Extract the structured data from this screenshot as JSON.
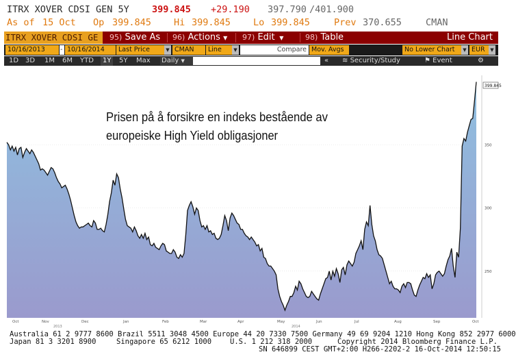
{
  "header": {
    "ticker": "ITRX XOVER CDSI GEN 5Y",
    "last": "399.845",
    "change": "+29.190",
    "bid": "397.790",
    "ask": "/401.900",
    "asof_label": "As of",
    "asof_date": "15 Oct",
    "op_label": "Op",
    "op_value": "399.845",
    "hi_label": "Hi",
    "hi_value": "399.845",
    "lo_label": "Lo",
    "lo_value": "399.845",
    "prev_label": "Prev",
    "prev_value": "370.655",
    "source": "CMAN"
  },
  "menubar": {
    "ticker_field": "ITRX XOVER CDSI GE",
    "save_num": "95)",
    "save_label": "Save As",
    "actions_num": "96)",
    "actions_label": "Actions",
    "edit_num": "97)",
    "edit_label": "Edit",
    "table_num": "98)",
    "table_label": "Table",
    "title": "Line Chart"
  },
  "controls": {
    "start_date": "10/16/2013",
    "end_date": "10/16/2014",
    "price_type": "Last Price",
    "source": "CMAN",
    "chart_type": "Line",
    "compare_label": "Compare",
    "mov_avgs_label": "Mov. Avgs",
    "lower_chart": "No Lower Chart",
    "currency": "EUR"
  },
  "timeframes": [
    "1D",
    "3D",
    "1M",
    "6M",
    "YTD",
    "1Y",
    "5Y",
    "Max"
  ],
  "selected_timeframe": "1Y",
  "period": "Daily",
  "toolbar_right": {
    "collapse": "«",
    "security_study": "Security/Study",
    "event": "Event"
  },
  "annotation": {
    "line1": "Prisen på å forsikre en indeks bestående av",
    "line2": "europeiske High Yield obligasjoner"
  },
  "colors": {
    "menubar_bg": "#8b0000",
    "field_orange": "#f0a818",
    "line": "#111111",
    "area_top": "#8fc0e0",
    "area_bottom": "#9a9acd"
  },
  "chart_data": {
    "type": "area",
    "x_labels": [
      "Oct",
      "Nov",
      "Dec",
      "Jan",
      "Feb",
      "Mar",
      "Apr",
      "May",
      "Jun",
      "Jul",
      "Aug",
      "Sep",
      "Oct"
    ],
    "year_labels": [
      "2013",
      "2014"
    ],
    "y_ticks": [
      250,
      300,
      350
    ],
    "y_min": 213,
    "y_max": 405,
    "last_label": "399.845",
    "y": [
      352,
      350,
      346,
      349,
      345,
      348,
      342,
      347,
      348,
      340,
      344,
      347,
      345,
      343,
      346,
      344,
      341,
      338,
      335,
      330,
      331,
      330,
      328,
      326,
      329,
      332,
      331,
      328,
      324,
      321,
      319,
      316,
      317,
      318,
      315,
      311,
      306,
      300,
      294,
      289,
      286,
      284,
      285,
      285,
      286,
      287,
      288,
      286,
      285,
      290,
      288,
      283,
      283,
      284,
      282,
      281,
      287,
      295,
      305,
      312,
      322,
      318,
      327,
      324,
      315,
      308,
      299,
      291,
      286,
      285,
      284,
      281,
      285,
      282,
      278,
      276,
      279,
      276,
      280,
      275,
      277,
      271,
      270,
      272,
      269,
      268,
      267,
      270,
      272,
      271,
      266,
      265,
      264,
      264,
      267,
      265,
      261,
      260,
      263,
      261,
      264,
      279,
      298,
      302,
      305,
      301,
      295,
      300,
      298,
      290,
      285,
      286,
      283,
      286,
      281,
      282,
      279,
      280,
      276,
      275,
      276,
      279,
      286,
      294,
      290,
      282,
      292,
      296,
      294,
      291,
      288,
      287,
      283,
      283,
      280,
      278,
      277,
      275,
      277,
      275,
      273,
      270,
      271,
      266,
      268,
      261,
      260,
      256,
      254,
      254,
      252,
      250,
      247,
      236,
      230,
      226,
      223,
      219,
      223,
      226,
      230,
      230,
      233,
      238,
      235,
      242,
      240,
      236,
      233,
      230,
      229,
      230,
      234,
      232,
      230,
      228,
      227,
      232,
      236,
      240,
      244,
      245,
      250,
      243,
      250,
      246,
      252,
      248,
      241,
      251,
      253,
      247,
      255,
      258,
      256,
      254,
      257,
      264,
      267,
      270,
      274,
      267,
      283,
      289,
      286,
      302,
      287,
      278,
      274,
      267,
      263,
      262,
      260,
      255,
      250,
      245,
      240,
      242,
      238,
      236,
      236,
      235,
      233,
      238,
      240,
      237,
      241,
      241,
      240,
      235,
      231,
      230,
      235,
      239,
      242,
      245,
      244,
      248,
      245,
      247,
      236,
      240,
      247,
      249,
      250,
      248,
      246,
      248,
      254,
      259,
      262,
      268,
      254,
      245,
      265,
      261,
      284,
      349,
      355,
      353,
      360,
      365,
      370,
      371,
      385,
      399.845
    ]
  },
  "footer": {
    "line1": "Australia 61 2 9777 8600 Brazil 5511 3048 4500 Europe 44 20 7330 7500 Germany 49 69 9204 1210 Hong Kong 852 2977 6000",
    "line2a": "Japan 81 3 3201 8900",
    "line2b": "Singapore 65 6212 1000",
    "line2c": "U.S. 1 212 318 2000",
    "line2d": "Copyright 2014 Bloomberg Finance L.P.",
    "line3": "SN 646899 CEST GMT+2:00 H266-2202-2 16-Oct-2014 12:50:15"
  }
}
